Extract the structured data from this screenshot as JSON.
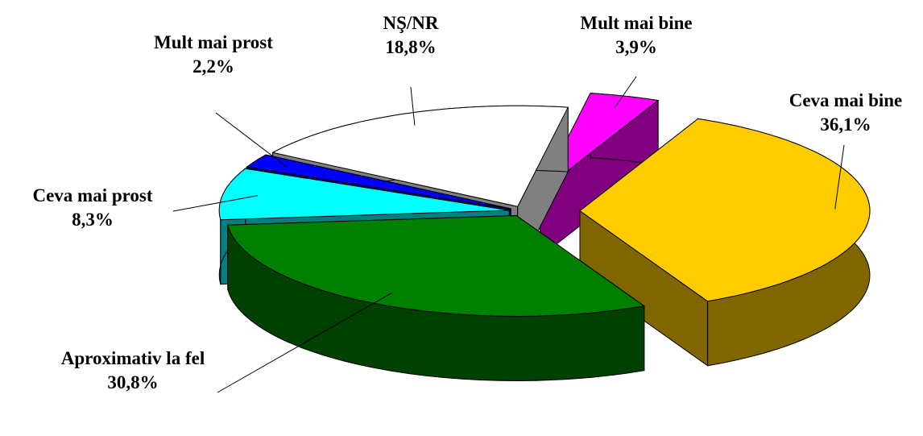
{
  "chart_data": {
    "type": "pie",
    "categories": [
      "Mult mai bine",
      "Ceva mai bine",
      "Aproximativ la fel",
      "Ceva mai prost",
      "Mult mai prost",
      "NŞ/NR"
    ],
    "values": [
      3.9,
      36.1,
      30.8,
      8.3,
      2.2,
      18.8
    ],
    "value_labels": [
      "3,9%",
      "36,1%",
      "30,8%",
      "8,3%",
      "2,2%",
      "18,8%"
    ],
    "colors": [
      "#ff00ff",
      "#ffcc00",
      "#008000",
      "#00ffff",
      "#0000ff",
      "#ffffff"
    ]
  }
}
